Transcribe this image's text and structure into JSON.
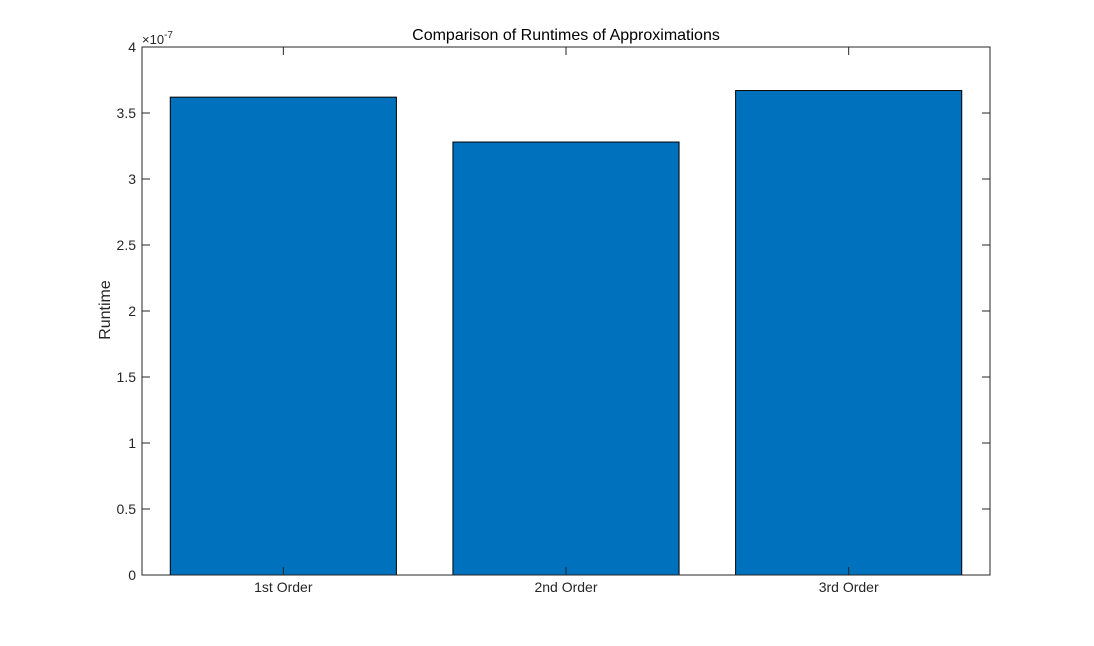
{
  "chart_data": {
    "type": "bar",
    "title": "Comparison of Runtimes of Approximations",
    "xlabel": "",
    "ylabel": "Runtime",
    "categories": [
      "1st Order",
      "2nd Order",
      "3rd Order"
    ],
    "values": [
      3.62e-07,
      3.28e-07,
      3.67e-07
    ],
    "ylim": [
      0,
      4e-07
    ],
    "ytick_labels": [
      "0",
      "0.5",
      "1",
      "1.5",
      "2",
      "2.5",
      "3",
      "3.5",
      "4"
    ],
    "y_exponent": {
      "base": "×10",
      "power": "-7"
    },
    "grid": false,
    "legend": "none",
    "bar_color": "#0072BD",
    "edge_color": "#000000"
  }
}
